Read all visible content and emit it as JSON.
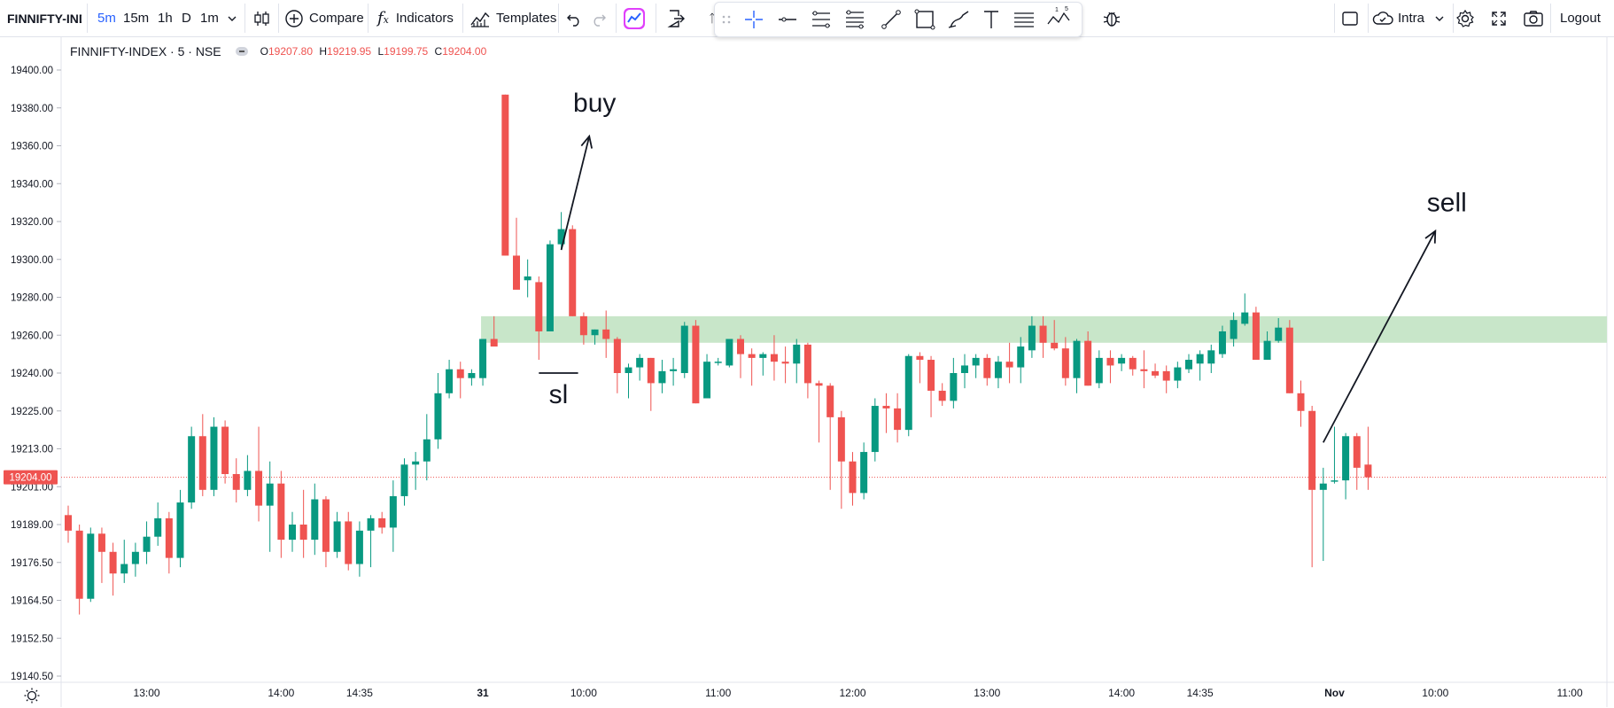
{
  "toolbar": {
    "symbol": "FINNIFTY-IND",
    "intervals": [
      "5m",
      "15m",
      "1h",
      "D",
      "1m"
    ],
    "compare_label": "Compare",
    "indicators_label": "Indicators",
    "templates_label": "Templates",
    "layout_label": "Intra",
    "logout_label": "Logout"
  },
  "legend": {
    "title": "FINNIFTY-INDEX · 5 · NSE",
    "open_key": "O",
    "open": "19207.80",
    "high_key": "H",
    "high": "19219.95",
    "low_key": "L",
    "low": "19199.75",
    "close_key": "C",
    "close": "19204.00"
  },
  "colors": {
    "up": "#089981",
    "down": "#ef5350",
    "zone": "#c8e6c9",
    "accent": "#2962ff"
  },
  "icons": [
    "candles-icon",
    "plus-circle-icon",
    "fx-icon",
    "templates-icon",
    "undo-icon",
    "redo-icon",
    "trading-icon",
    "export-icon",
    "crosshair-icon",
    "horizontal-line-icon",
    "parallel-channel-icon",
    "fib-icon",
    "trend-line-icon",
    "rectangle-icon",
    "brush-icon",
    "text-icon",
    "gann-icon",
    "pattern-icon",
    "bug-icon",
    "square-icon",
    "cloud-icon",
    "gear-icon",
    "fullscreen-icon",
    "camera-icon",
    "settings-sun-icon"
  ],
  "chart_data": {
    "type": "candlestick",
    "symbol": "FINNIFTY-INDEX",
    "interval": "5",
    "exchange": "NSE",
    "last_price": 19204.0,
    "price_ticks": [
      "19400.00",
      "19380.00",
      "19360.00",
      "19340.00",
      "19320.00",
      "19300.00",
      "19280.00",
      "19260.00",
      "19240.00",
      "19225.00",
      "19213.00",
      "19201.00",
      "19189.00",
      "19176.50",
      "19164.50",
      "19152.50",
      "19140.50"
    ],
    "price_tick_values": [
      19400,
      19380,
      19360,
      19340,
      19320,
      19300,
      19280,
      19260,
      19240,
      19225,
      19213,
      19201,
      19189,
      19176.5,
      19164.5,
      19152.5,
      19140.5
    ],
    "time_ticks": [
      {
        "label": "13:00",
        "index": 7
      },
      {
        "label": "14:00",
        "index": 19
      },
      {
        "label": "14:35",
        "index": 26
      },
      {
        "label": "31",
        "index": 37
      },
      {
        "label": "10:00",
        "index": 46
      },
      {
        "label": "11:00",
        "index": 58
      },
      {
        "label": "12:00",
        "index": 70
      },
      {
        "label": "13:00",
        "index": 82
      },
      {
        "label": "14:00",
        "index": 94
      },
      {
        "label": "14:35",
        "index": 101
      },
      {
        "label": "Nov",
        "index": 113
      },
      {
        "label": "10:00",
        "index": 122
      },
      {
        "label": "11:00",
        "index": 134
      }
    ],
    "candles": [
      [
        19192,
        19195,
        19183,
        19187
      ],
      [
        19187,
        19189,
        19160,
        19165
      ],
      [
        19165,
        19188,
        19164,
        19186
      ],
      [
        19186,
        19188,
        19170,
        19180
      ],
      [
        19180,
        19183,
        19166,
        19173
      ],
      [
        19173,
        19184,
        19170,
        19176
      ],
      [
        19176,
        19183,
        19172,
        19180
      ],
      [
        19180,
        19190,
        19176,
        19185
      ],
      [
        19185,
        19196,
        19182,
        19191
      ],
      [
        19191,
        19193,
        19173,
        19178
      ],
      [
        19178,
        19200,
        19175,
        19196
      ],
      [
        19196,
        19220,
        19194,
        19217
      ],
      [
        19217,
        19224,
        19198,
        19200
      ],
      [
        19200,
        19223,
        19198,
        19220
      ],
      [
        19220,
        19222,
        19202,
        19205
      ],
      [
        19205,
        19210,
        19196,
        19200
      ],
      [
        19200,
        19211,
        19198,
        19206
      ],
      [
        19206,
        19220,
        19190,
        19195
      ],
      [
        19195,
        19209,
        19180,
        19202
      ],
      [
        19202,
        19206,
        19178,
        19184
      ],
      [
        19184,
        19193,
        19180,
        19189
      ],
      [
        19189,
        19200,
        19178,
        19184
      ],
      [
        19184,
        19202,
        19179,
        19197
      ],
      [
        19197,
        19198,
        19175,
        19180
      ],
      [
        19180,
        19193,
        19178,
        19190
      ],
      [
        19190,
        19193,
        19174,
        19176
      ],
      [
        19176,
        19190,
        19172,
        19187
      ],
      [
        19187,
        19192,
        19175,
        19191
      ],
      [
        19191,
        19193,
        19186,
        19188
      ],
      [
        19188,
        19203,
        19180,
        19198
      ],
      [
        19198,
        19210,
        19195,
        19208
      ],
      [
        19208,
        19212,
        19200,
        19209
      ],
      [
        19209,
        19224,
        19203,
        19216
      ],
      [
        19216,
        19240,
        19213,
        19232
      ],
      [
        19232,
        19247,
        19230,
        19242
      ],
      [
        19242,
        19246,
        19230,
        19238
      ],
      [
        19238,
        19242,
        19235,
        19240
      ],
      [
        19238,
        19258,
        19235,
        19258
      ],
      [
        19258,
        19270,
        19255,
        19254
      ],
      [
        19387,
        19387,
        19302,
        19302
      ],
      [
        19302,
        19322,
        19285,
        19284
      ],
      [
        19289,
        19300,
        19280,
        19291
      ],
      [
        19288,
        19291,
        19247,
        19262
      ],
      [
        19262,
        19310,
        19262,
        19308
      ],
      [
        19308,
        19325,
        19305,
        19316
      ],
      [
        19316,
        19318,
        19270,
        19270
      ],
      [
        19270,
        19272,
        19255,
        19260
      ],
      [
        19260,
        19263,
        19255,
        19263
      ],
      [
        19263,
        19273,
        19248,
        19258
      ],
      [
        19258,
        19259,
        19232,
        19240
      ],
      [
        19240,
        19245,
        19230,
        19243
      ],
      [
        19243,
        19250,
        19237,
        19248
      ],
      [
        19248,
        19248,
        19225,
        19236
      ],
      [
        19236,
        19247,
        19232,
        19241
      ],
      [
        19241,
        19248,
        19235,
        19242
      ],
      [
        19240,
        19267,
        19238,
        19265
      ],
      [
        19265,
        19268,
        19228,
        19228
      ],
      [
        19230,
        19250,
        19230,
        19246
      ],
      [
        19246,
        19248,
        19244,
        19246
      ],
      [
        19244,
        19256,
        19243,
        19258
      ],
      [
        19258,
        19260,
        19238,
        19250
      ],
      [
        19250,
        19253,
        19235,
        19248
      ],
      [
        19248,
        19251,
        19239,
        19250
      ],
      [
        19250,
        19260,
        19237,
        19246
      ],
      [
        19246,
        19254,
        19236,
        19245
      ],
      [
        19245,
        19258,
        19236,
        19255
      ],
      [
        19255,
        19256,
        19230,
        19236
      ],
      [
        19236,
        19237,
        19215,
        19235
      ],
      [
        19235,
        19236,
        19200,
        19223
      ],
      [
        19223,
        19225,
        19194,
        19209
      ],
      [
        19209,
        19212,
        19195,
        19199
      ],
      [
        19199,
        19215,
        19197,
        19212
      ],
      [
        19212,
        19230,
        19209,
        19227
      ],
      [
        19227,
        19232,
        19218,
        19226
      ],
      [
        19226,
        19232,
        19215,
        19219
      ],
      [
        19219,
        19250,
        19217,
        19249
      ],
      [
        19249,
        19251,
        19236,
        19247
      ],
      [
        19247,
        19249,
        19223,
        19233
      ],
      [
        19233,
        19236,
        19227,
        19229
      ],
      [
        19229,
        19248,
        19226,
        19240
      ],
      [
        19240,
        19250,
        19234,
        19244
      ],
      [
        19244,
        19250,
        19238,
        19248
      ],
      [
        19248,
        19250,
        19235,
        19238
      ],
      [
        19238,
        19249,
        19234,
        19246
      ],
      [
        19246,
        19256,
        19236,
        19243
      ],
      [
        19243,
        19259,
        19236,
        19254
      ],
      [
        19252,
        19270,
        19248,
        19265
      ],
      [
        19265,
        19270,
        19248,
        19256
      ],
      [
        19256,
        19268,
        19252,
        19253
      ],
      [
        19253,
        19259,
        19235,
        19238
      ],
      [
        19238,
        19258,
        19232,
        19257
      ],
      [
        19257,
        19262,
        19235,
        19235
      ],
      [
        19236,
        19252,
        19234,
        19248
      ],
      [
        19248,
        19252,
        19236,
        19244
      ],
      [
        19245,
        19250,
        19241,
        19248
      ],
      [
        19248,
        19249,
        19239,
        19242
      ],
      [
        19242,
        19252,
        19234,
        19241
      ],
      [
        19241,
        19245,
        19238,
        19239
      ],
      [
        19241,
        19244,
        19232,
        19237
      ],
      [
        19237,
        19246,
        19234,
        19243
      ],
      [
        19242,
        19250,
        19240,
        19247
      ],
      [
        19245,
        19252,
        19237,
        19250
      ],
      [
        19245,
        19255,
        19240,
        19252
      ],
      [
        19250,
        19265,
        19248,
        19262
      ],
      [
        19258,
        19272,
        19254,
        19268
      ],
      [
        19266,
        19282,
        19265,
        19272
      ],
      [
        19272,
        19275,
        19247,
        19247
      ],
      [
        19247,
        19262,
        19247,
        19257
      ],
      [
        19257,
        19269,
        19256,
        19264
      ],
      [
        19264,
        19268,
        19232,
        19232
      ],
      [
        19232,
        19237,
        19220,
        19225
      ],
      [
        19225,
        19227,
        19175,
        19200
      ],
      [
        19200,
        19207,
        19177,
        19202
      ],
      [
        19203,
        19220,
        19202,
        19203
      ],
      [
        19203,
        19218,
        19197,
        19217
      ],
      [
        19217,
        19218,
        19200,
        19207
      ],
      [
        19208,
        19220,
        19200,
        19204
      ]
    ],
    "annotations": [
      {
        "type": "rectangle",
        "label": "",
        "price_top": 19270,
        "price_bottom": 19256,
        "from_index": 37,
        "to_index": "right-edge"
      },
      {
        "type": "arrow",
        "label": "buy",
        "from_index": 44,
        "from_price": 19305,
        "to_index": 46.5,
        "to_price": 19365
      },
      {
        "type": "hline",
        "label": "sl",
        "price": 19240,
        "from_index": 42,
        "to_index": 45.5
      },
      {
        "type": "arrow",
        "label": "sell",
        "from_index": 112,
        "from_price": 19215,
        "to_index": 122,
        "to_price": 19315
      }
    ],
    "grid": false,
    "legend_position": "top-left"
  }
}
